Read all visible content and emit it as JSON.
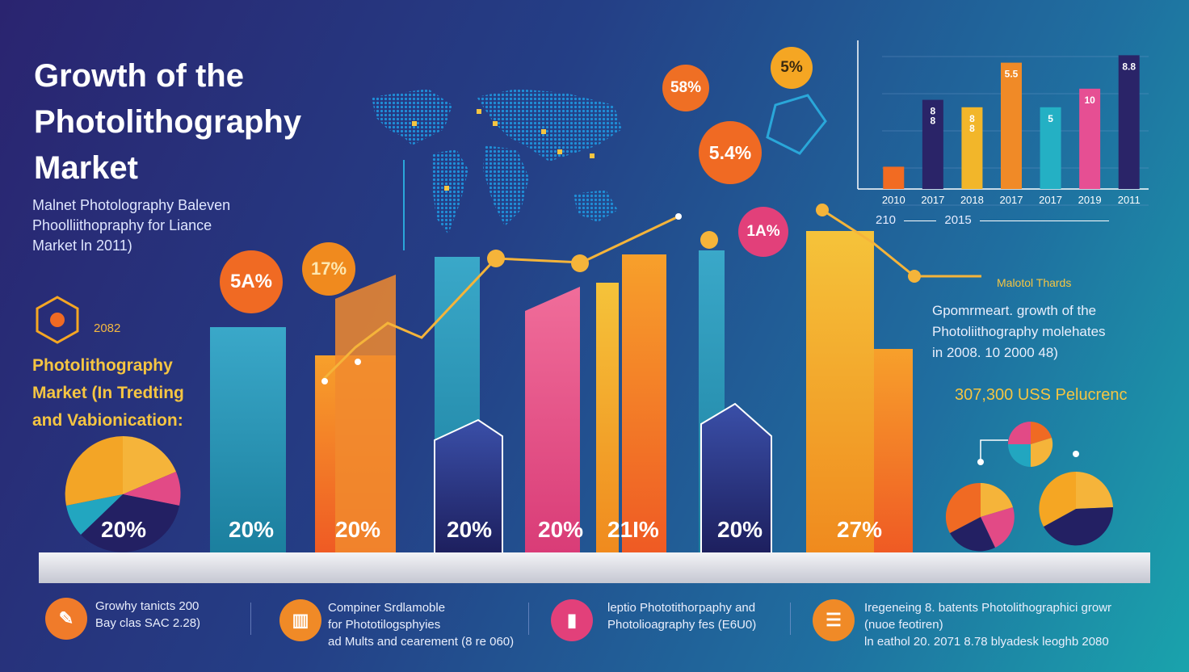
{
  "header": {
    "title_lines": [
      "Growth of the",
      "Photolithography",
      "Market"
    ],
    "subtitle_lines": [
      "Malnet Photologrаphy Baleven",
      "Phoolliithoрraphy fоr Liance",
      "Market ln 2011)"
    ]
  },
  "left_panel": {
    "year": "2082",
    "heading_lines": [
      "Photolithography",
      "Market (In Tredting",
      "and Vabionication:"
    ],
    "pie_label": "20%"
  },
  "main_chart": {
    "bar_labels": [
      "20%",
      "20%",
      "20%",
      "20%",
      "20%",
      "21I%",
      "20%",
      "27%"
    ]
  },
  "bubbles": [
    {
      "label": "5A%",
      "color": "#f06a23"
    },
    {
      "label": "17%",
      "color": "#f08a1e"
    },
    {
      "label": "58%",
      "color": "#ef6f24"
    },
    {
      "label": "5%",
      "color": "#f5a623"
    },
    {
      "label": "5.4%",
      "color": "#f06a23"
    },
    {
      "label": "1A%",
      "color": "#e2407a"
    }
  ],
  "chart_data": {
    "type": "bar",
    "categories": [
      "2010",
      "2017",
      "2018",
      "2017",
      "2017",
      "2019",
      "2011"
    ],
    "values": [
      3,
      12,
      11,
      17,
      11,
      13.5,
      18
    ],
    "colors": [
      "#f26b22",
      "#2a2468",
      "#f2b62a",
      "#f08a27",
      "#24b0c4",
      "#e64f93",
      "#2a2468"
    ],
    "bar_labels": [
      "",
      "8\n8",
      "8\n8",
      "5.5",
      "5",
      "10",
      "8.8"
    ],
    "ylim": [
      0,
      20
    ],
    "x_axis_note": [
      "210",
      "2015"
    ],
    "grid": true
  },
  "right_panel": {
    "trends_title": "Malotol Thards",
    "trends_lines": [
      "Gpomrmeart. growth of the",
      "Photoliithоgraphy molehates",
      "in 2008. 10 2000 48)"
    ],
    "usd_value": "307,300 USS Pelucrenc"
  },
  "footer": [
    {
      "icon": "pen-icon",
      "color": "#f07b2a",
      "lines": [
        "Growhy tanicts 200",
        "Bay clas SAC 2.28)"
      ]
    },
    {
      "icon": "book-icon",
      "color": "#f08a27",
      "lines": [
        "Compiner Srdlamoble",
        "for Phototilogsphyies",
        "ad Mults and cearement (8 re 060)"
      ]
    },
    {
      "icon": "chart-icon",
      "color": "#e2407a",
      "lines": [
        "leptio Phototithoграphy and",
        "Photolioаgraphy fes (E6U0)"
      ]
    },
    {
      "icon": "database-icon",
      "color": "#f08a27",
      "lines": [
        "Iregeneing 8. batents Photolithographici growr",
        "(nuoe feotiren)",
        "ln eathol 20. 2071 8.78 blyadesk leoghb 2080"
      ]
    }
  ]
}
